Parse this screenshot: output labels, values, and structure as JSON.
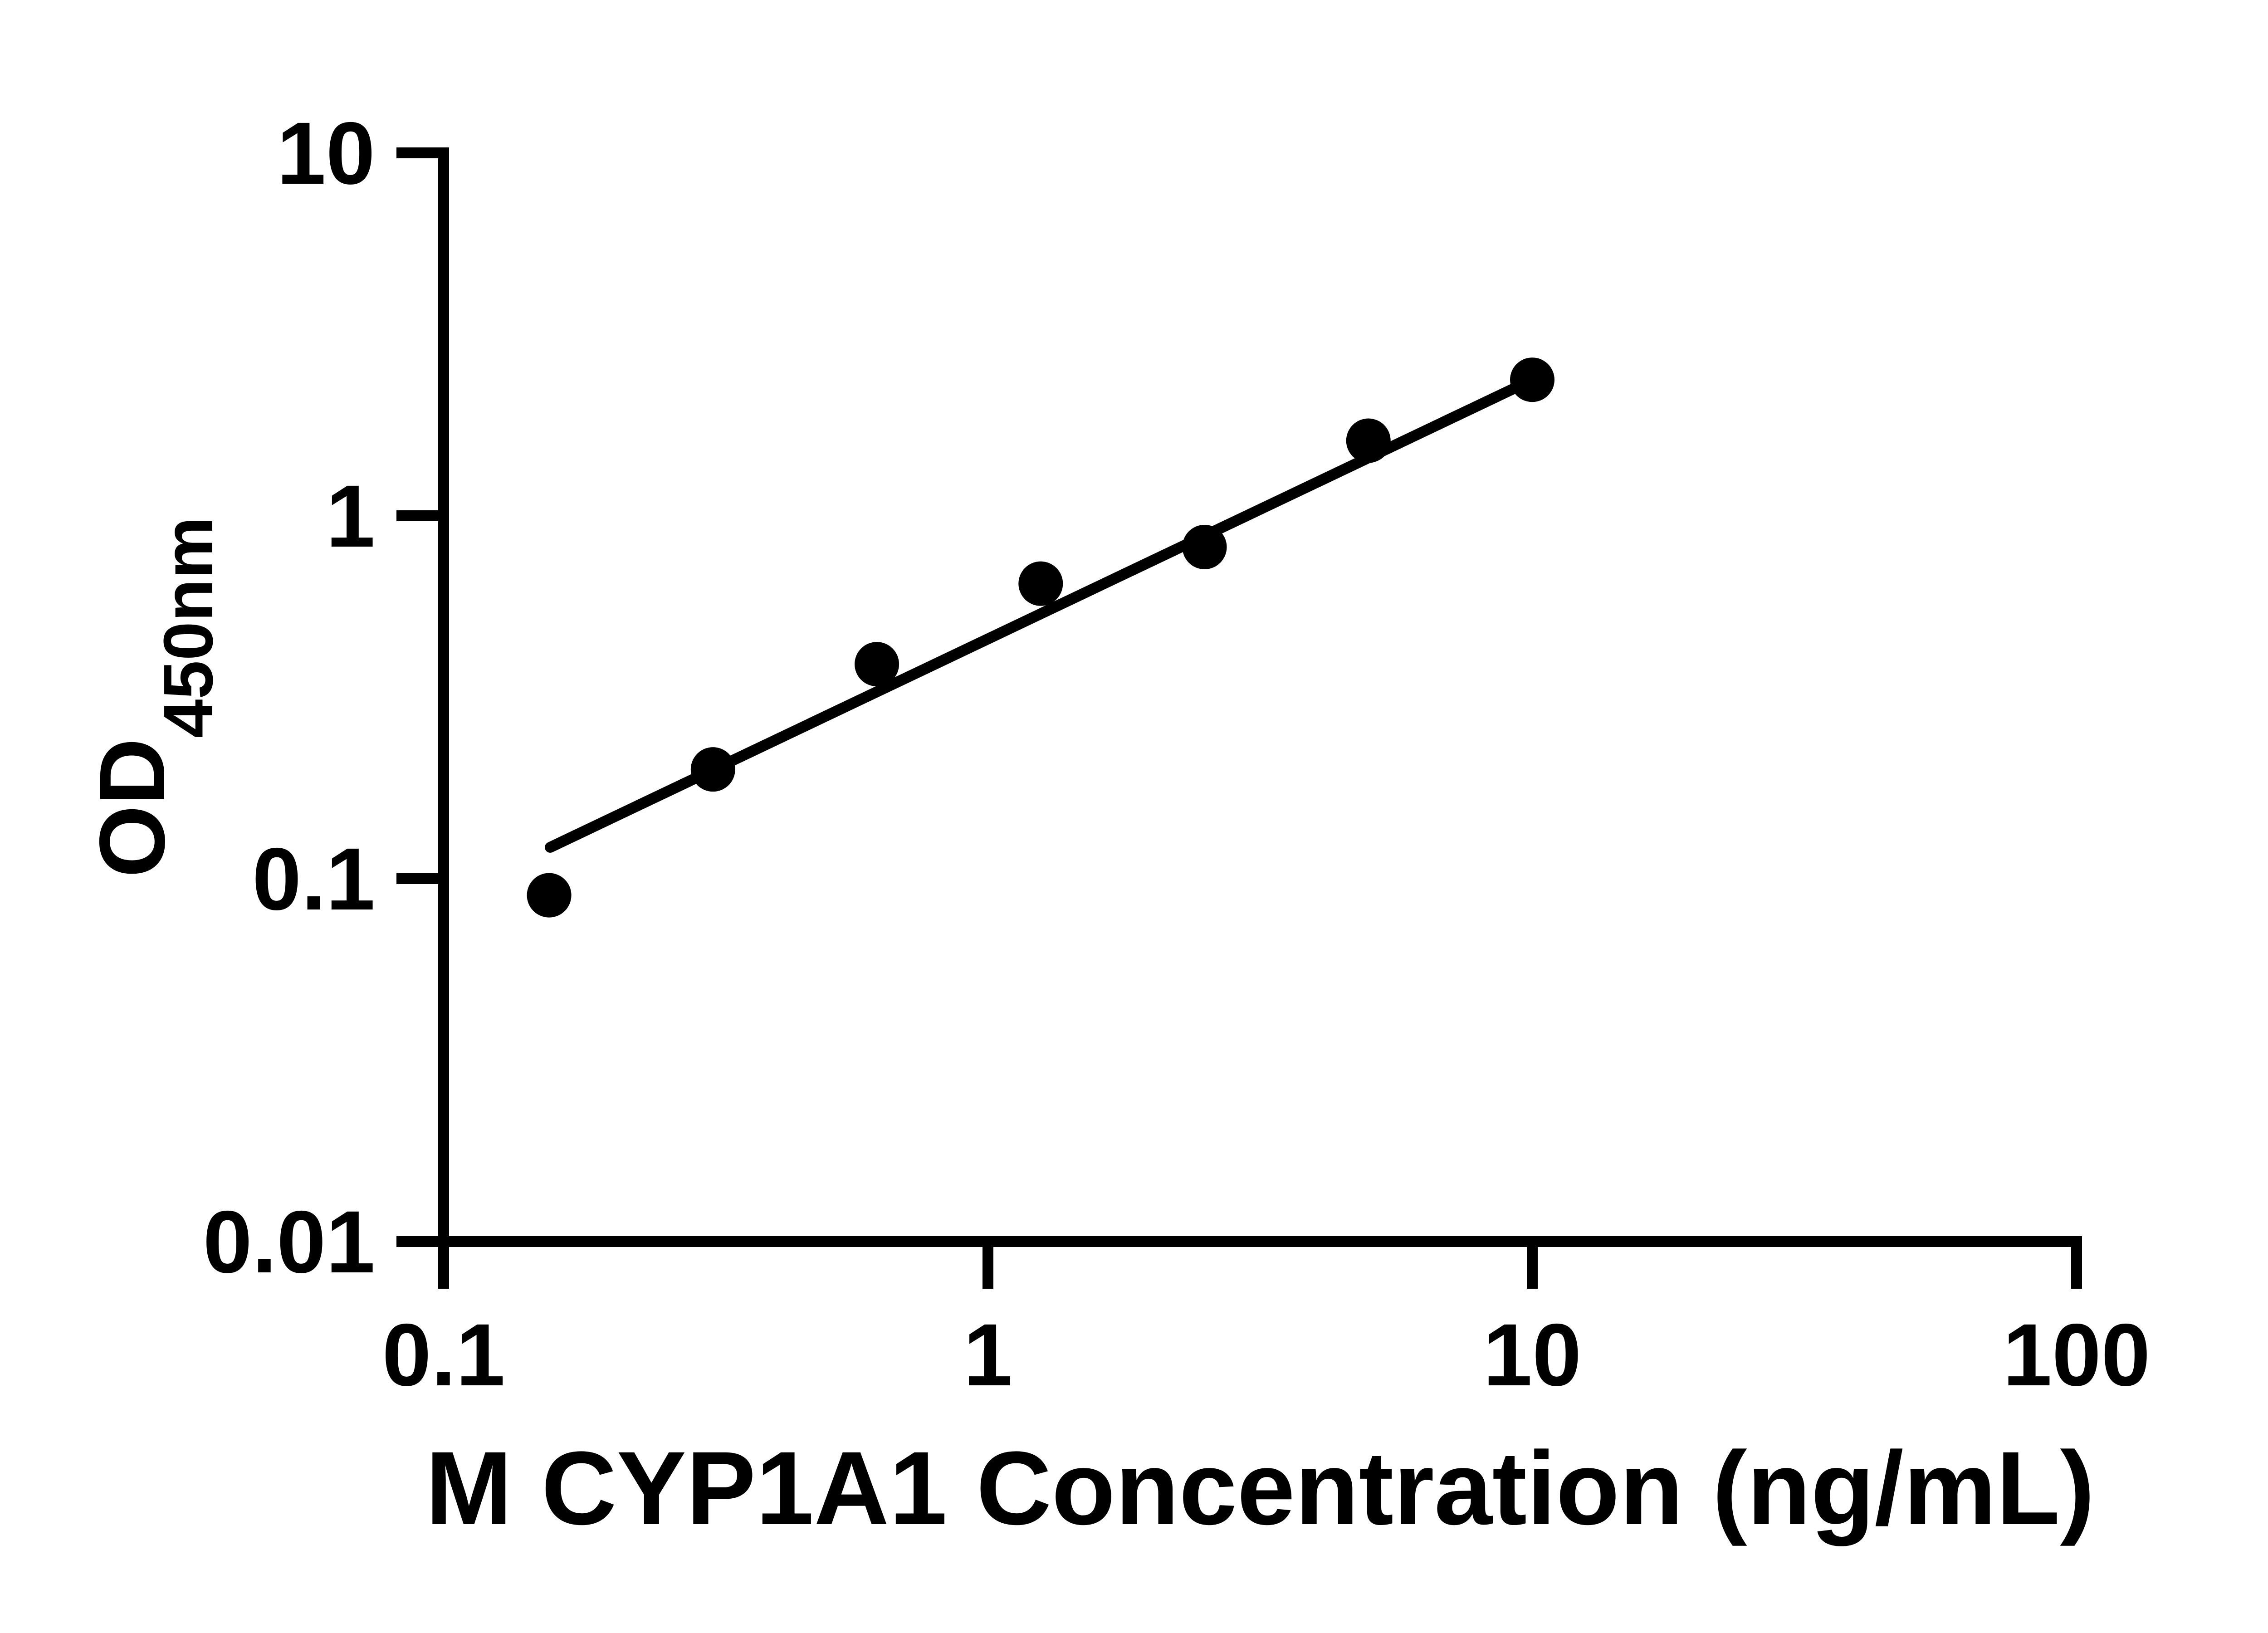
{
  "colors": {
    "background": "#ffffff",
    "ink": "#000000"
  },
  "chart_data": {
    "type": "scatter",
    "title": "",
    "xlabel": "M CYP1A1 Concentration (ng/mL)",
    "ylabel": "OD450nm",
    "ylabel_main": "OD",
    "ylabel_subscript": "450nm",
    "x_scale": "log",
    "y_scale": "log",
    "xlim": [
      0.1,
      100
    ],
    "ylim": [
      0.01,
      10
    ],
    "x_ticks": [
      {
        "value": 0.1,
        "label": "0.1"
      },
      {
        "value": 1,
        "label": "1"
      },
      {
        "value": 10,
        "label": "10"
      },
      {
        "value": 100,
        "label": "100"
      }
    ],
    "y_ticks": [
      {
        "value": 10,
        "label": "10"
      },
      {
        "value": 1,
        "label": "1"
      },
      {
        "value": 0.1,
        "label": "0.1"
      },
      {
        "value": 0.01,
        "label": "0.01"
      }
    ],
    "grid": false,
    "legend": "none",
    "marker": {
      "shape": "circle",
      "color": "#000000"
    },
    "line_color": "#000000",
    "trend_line": {
      "x1": 0.157,
      "y1": 0.122,
      "x2": 10,
      "y2": 2.37
    },
    "points": [
      {
        "x": 0.15625,
        "y": 0.09
      },
      {
        "x": 0.3125,
        "y": 0.2
      },
      {
        "x": 0.625,
        "y": 0.39
      },
      {
        "x": 1.25,
        "y": 0.65
      },
      {
        "x": 2.5,
        "y": 0.82
      },
      {
        "x": 5,
        "y": 1.61
      },
      {
        "x": 10,
        "y": 2.37
      }
    ]
  }
}
